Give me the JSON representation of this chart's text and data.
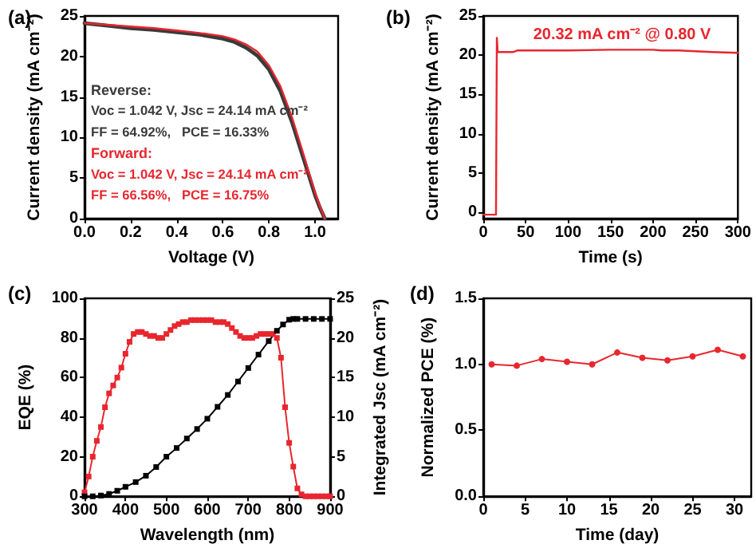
{
  "chart_data": [
    {
      "type": "line",
      "title": "(a)",
      "xlabel": "Voltage (V)",
      "ylabel": "Current density (mA cm⁻²)",
      "xlim": [
        0,
        1.1
      ],
      "xticks": [
        {
          "value": 0,
          "label": "0.0"
        },
        {
          "value": 0.2,
          "label": "0.2"
        },
        {
          "value": 0.4,
          "label": "0.4"
        },
        {
          "value": 0.6,
          "label": "0.6"
        },
        {
          "value": 0.8,
          "label": "0.8"
        },
        {
          "value": 1,
          "label": "1.0"
        }
      ],
      "ylim": [
        0,
        25
      ],
      "yticks": [
        0,
        5,
        10,
        15,
        20,
        25
      ],
      "marker": "none",
      "grid": false,
      "series": [
        {
          "name": "Reverse:",
          "color": "#3a3a3a",
          "x": [
            0,
            0.1,
            0.2,
            0.3,
            0.4,
            0.5,
            0.6,
            0.65,
            0.7,
            0.75,
            0.8,
            0.85,
            0.9,
            0.95,
            1.0,
            1.02,
            1.042
          ],
          "values": [
            24.1,
            23.8,
            23.5,
            23.3,
            23.0,
            22.7,
            22.2,
            21.8,
            21.1,
            20.1,
            18.4,
            15.7,
            11.9,
            7.4,
            2.9,
            1.4,
            0
          ]
        },
        {
          "name": "Forward:",
          "color": "#e8262e",
          "x": [
            0,
            0.1,
            0.2,
            0.3,
            0.4,
            0.5,
            0.6,
            0.65,
            0.7,
            0.75,
            0.8,
            0.85,
            0.9,
            0.95,
            1.0,
            1.02,
            1.042
          ],
          "values": [
            24.1,
            23.9,
            23.7,
            23.5,
            23.2,
            22.9,
            22.5,
            22.1,
            21.5,
            20.6,
            18.9,
            16.3,
            12.5,
            7.9,
            3.2,
            1.6,
            0
          ]
        }
      ],
      "annotations": [
        "Voc = 1.042 V, Jsc = 24.14 mA cm⁻²",
        "FF = 64.92%,   PCE = 16.33%",
        "Voc = 1.042 V, Jsc = 24.14 mA cm⁻²",
        "FF = 66.56%,   PCE = 16.75%"
      ]
    },
    {
      "type": "line",
      "title": "(b)",
      "xlabel": "Time (s)",
      "ylabel": "Current density (mA cm⁻²)",
      "xlim": [
        0,
        300
      ],
      "xticks": [
        0,
        50,
        100,
        150,
        200,
        250,
        300
      ],
      "ylim": [
        -0.8,
        25
      ],
      "yticks": [
        0,
        5,
        10,
        15,
        20,
        25
      ],
      "marker": "none",
      "grid": false,
      "series": [
        {
          "color": "#e8262e",
          "x": [
            0,
            15,
            16,
            17,
            18,
            30,
            35,
            40,
            70,
            100,
            150,
            200,
            210,
            230,
            250,
            270,
            300
          ],
          "values": [
            -0.3,
            -0.3,
            22.2,
            20.4,
            20.4,
            20.4,
            20.4,
            20.6,
            20.6,
            20.6,
            20.7,
            20.7,
            20.6,
            20.6,
            20.5,
            20.4,
            20.3
          ]
        }
      ],
      "annotations": [
        "20.32 mA cm⁻² @ 0.80 V"
      ]
    },
    {
      "type": "line",
      "title": "(c)",
      "xlabel": "Wavelength (nm)",
      "ylabel": "EQE (%)",
      "y2label": "Integrated Jsc (mA cm⁻²)",
      "xlim": [
        300,
        900
      ],
      "xticks": [
        300,
        400,
        500,
        600,
        700,
        800,
        900
      ],
      "ylim": [
        0,
        100
      ],
      "yticks": [
        0,
        20,
        40,
        60,
        80,
        100
      ],
      "y2lim": [
        0,
        25
      ],
      "y2ticks": [
        0,
        5,
        10,
        15,
        20,
        25
      ],
      "marker": "square",
      "grid": false,
      "series": [
        {
          "color": "#e8262e",
          "x": [
            300,
            310,
            320,
            330,
            340,
            350,
            360,
            370,
            380,
            390,
            400,
            410,
            420,
            430,
            440,
            450,
            460,
            470,
            480,
            490,
            500,
            510,
            520,
            530,
            540,
            550,
            560,
            570,
            580,
            590,
            600,
            610,
            620,
            630,
            640,
            650,
            660,
            670,
            680,
            690,
            700,
            710,
            720,
            730,
            740,
            750,
            760,
            770,
            780,
            790,
            800,
            810,
            820,
            830,
            840,
            850,
            860,
            870,
            880,
            890,
            900
          ],
          "values": [
            2,
            10,
            20,
            28,
            35,
            45,
            52,
            56,
            60,
            65,
            72,
            78,
            82,
            83,
            83,
            82,
            81,
            81,
            80,
            80,
            82,
            84,
            86,
            87,
            88,
            88,
            89,
            89,
            89,
            89,
            89,
            89,
            88,
            88,
            88,
            87,
            85,
            83,
            81,
            80,
            80,
            80,
            81,
            82,
            82,
            82,
            82,
            80,
            70,
            45,
            27,
            15,
            4,
            1,
            0,
            0,
            0,
            0,
            0,
            0,
            0
          ]
        },
        {
          "color": "#000000",
          "axis": "y2",
          "x": [
            300,
            320,
            340,
            360,
            380,
            400,
            425,
            450,
            475,
            500,
            525,
            550,
            575,
            600,
            625,
            650,
            675,
            700,
            725,
            750,
            770,
            785,
            800,
            810,
            820,
            840,
            860,
            880,
            900
          ],
          "values": [
            0,
            0,
            0.1,
            0.3,
            0.7,
            1.2,
            1.8,
            2.6,
            3.7,
            5,
            6.1,
            7.3,
            8.5,
            9.8,
            11.3,
            12.8,
            14.5,
            16.2,
            17.9,
            19.6,
            20.9,
            21.7,
            22.3,
            22.4,
            22.4,
            22.4,
            22.4,
            22.4,
            22.4
          ]
        }
      ]
    },
    {
      "type": "line",
      "title": "(d)",
      "xlabel": "Time (day)",
      "ylabel": "Normalized PCE (%)",
      "xlim": [
        0,
        32
      ],
      "xticks": [
        0,
        5,
        10,
        15,
        20,
        25,
        30
      ],
      "ylim": [
        0,
        1.5
      ],
      "yticks": [
        {
          "value": 0,
          "label": "0.0"
        },
        {
          "value": 0.5,
          "label": "0.5"
        },
        {
          "value": 1,
          "label": "1.0"
        },
        {
          "value": 1.5,
          "label": "1.5"
        }
      ],
      "marker": "circle",
      "grid": false,
      "series": [
        {
          "color": "#e8262e",
          "x": [
            1,
            4,
            7,
            10,
            13,
            16,
            19,
            22,
            25,
            28,
            31
          ],
          "values": [
            1.0,
            0.99,
            1.04,
            1.02,
            1.0,
            1.09,
            1.05,
            1.03,
            1.06,
            1.11,
            1.06
          ]
        }
      ]
    }
  ]
}
